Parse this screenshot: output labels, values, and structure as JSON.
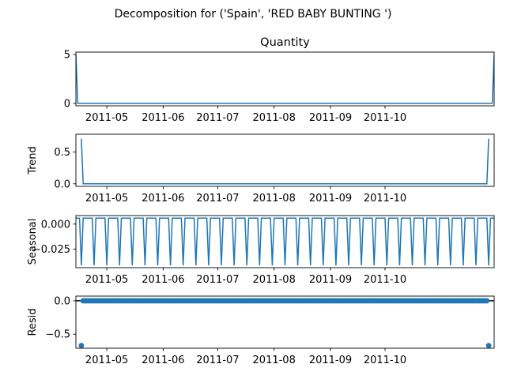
{
  "figure": {
    "suptitle": "Decomposition for ('Spain', 'RED BABY BUNTING ')"
  },
  "colors": {
    "series": "#1f77b4",
    "axes": "#000000",
    "zero_line": "#000000"
  },
  "chart_data": [
    {
      "type": "line",
      "title": "Quantity",
      "ylabel": "",
      "xlim": [
        "2011-04-14",
        "2011-11-30"
      ],
      "ylim": [
        -0.25,
        5.25
      ],
      "yticks": [
        0,
        5
      ],
      "ytick_labels": [
        "0",
        "5"
      ],
      "xticks": [
        "2011-05-01",
        "2011-06-01",
        "2011-07-01",
        "2011-08-01",
        "2011-09-01",
        "2011-10-01"
      ],
      "xtick_labels": [
        "2011-05",
        "2011-06",
        "2011-07",
        "2011-08",
        "2011-09",
        "2011-10"
      ],
      "series": [
        {
          "x": [
            "2011-04-14",
            "2011-04-15",
            "2011-11-29",
            "2011-11-30"
          ],
          "values": [
            5,
            0,
            0,
            5
          ]
        }
      ]
    },
    {
      "type": "line",
      "title": "",
      "ylabel": "Trend",
      "xlim": [
        "2011-04-14",
        "2011-11-30"
      ],
      "ylim": [
        -0.04,
        0.78
      ],
      "yticks": [
        0.0,
        0.5
      ],
      "ytick_labels": [
        "0.0",
        "0.5"
      ],
      "xticks": [
        "2011-05-01",
        "2011-06-01",
        "2011-07-01",
        "2011-08-01",
        "2011-09-01",
        "2011-10-01"
      ],
      "xtick_labels": [
        "2011-05",
        "2011-06",
        "2011-07",
        "2011-08",
        "2011-09",
        "2011-10"
      ],
      "series": [
        {
          "x": [
            "2011-04-17",
            "2011-04-18",
            "2011-11-26",
            "2011-11-27"
          ],
          "values": [
            0.71,
            0,
            0,
            0.71
          ]
        }
      ]
    },
    {
      "type": "line",
      "title": "",
      "ylabel": "Seasonal",
      "xlim": [
        "2011-04-14",
        "2011-11-30"
      ],
      "ylim": [
        -0.0435,
        0.0085
      ],
      "yticks": [
        0.0,
        -0.025
      ],
      "ytick_labels": [
        "0.000",
        "−0.025"
      ],
      "xticks": [
        "2011-05-01",
        "2011-06-01",
        "2011-07-01",
        "2011-08-01",
        "2011-09-01",
        "2011-10-01"
      ],
      "xtick_labels": [
        "2011-05",
        "2011-06",
        "2011-07",
        "2011-08",
        "2011-09",
        "2011-10"
      ],
      "seasonal_pattern": {
        "start": "2011-04-14",
        "end": "2011-11-30",
        "period_days": 7,
        "first_low": "2011-04-17",
        "high": 0.0059,
        "low": -0.0412
      }
    },
    {
      "type": "scatter",
      "title": "",
      "ylabel": "Resid",
      "xlim": [
        "2011-04-14",
        "2011-11-30"
      ],
      "ylim": [
        -0.71,
        0.07
      ],
      "yticks": [
        0.0,
        -0.5
      ],
      "ytick_labels": [
        "0.0",
        "−0.5"
      ],
      "xticks": [
        "2011-05-01",
        "2011-06-01",
        "2011-07-01",
        "2011-08-01",
        "2011-09-01",
        "2011-10-01"
      ],
      "xtick_labels": [
        "2011-05",
        "2011-06",
        "2011-07",
        "2011-08",
        "2011-09",
        "2011-10"
      ],
      "zero_line": 0,
      "resid_range": {
        "start": "2011-04-17",
        "end": "2011-11-27"
      },
      "outliers": [
        {
          "x": "2011-04-17",
          "value": -0.67
        },
        {
          "x": "2011-11-27",
          "value": -0.67
        }
      ]
    }
  ]
}
